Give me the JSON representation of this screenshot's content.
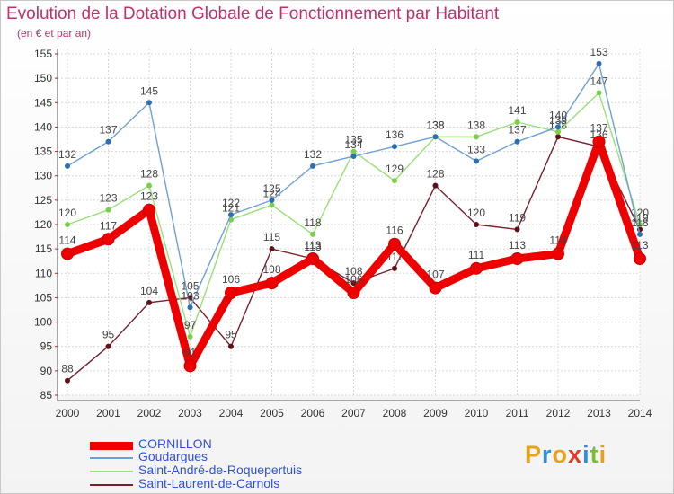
{
  "header": {
    "title": "Evolution de la Dotation Globale de Fonctionnement par Habitant",
    "subtitle": "(en € et par an)"
  },
  "brand": {
    "letters": [
      "P",
      "r",
      "o",
      "x",
      "i",
      "t",
      "i"
    ],
    "colors": [
      "#e6a21a",
      "#2f8fd8",
      "#e6a21a",
      "#e23b2b",
      "#2f8fd8",
      "#7bbf2a",
      "#e6a21a"
    ]
  },
  "chart_data": {
    "type": "line",
    "title": "Evolution de la Dotation Globale de Fonctionnement par Habitant",
    "ylabel": "(en € et par an)",
    "xlabel": "",
    "ylim": [
      85,
      155
    ],
    "yticks": [
      "85",
      "90",
      "95",
      "100",
      "105",
      "110",
      "115",
      "120",
      "125",
      "130",
      "135",
      "140",
      "145",
      "150",
      "155"
    ],
    "categories": [
      "2000",
      "2001",
      "2002",
      "2003",
      "2004",
      "2005",
      "2006",
      "2007",
      "2008",
      "2009",
      "2010",
      "2011",
      "2012",
      "2013",
      "2014"
    ],
    "grid": true,
    "series": [
      {
        "name": "Saint-Laurent-de-Carnols",
        "color": "#7a1f2a",
        "dot": "#5e1218",
        "values": [
          88,
          95,
          104,
          105,
          95,
          115,
          113,
          108,
          111,
          128,
          120,
          119,
          138,
          136,
          119
        ]
      },
      {
        "name": "Saint-André-de-Roquepertuis",
        "color": "#98df74",
        "dot": "#7ad04a",
        "values": [
          120,
          123,
          128,
          97,
          121,
          124,
          118,
          135,
          129,
          138,
          138,
          141,
          139,
          147,
          120
        ]
      },
      {
        "name": "Goudargues",
        "color": "#6ea0d3",
        "dot": "#2d6fb3",
        "values": [
          132,
          137,
          145,
          103,
          122,
          125,
          132,
          134,
          136,
          138,
          133,
          137,
          140,
          153,
          118
        ]
      },
      {
        "name": "CORNILLON",
        "color": "#ee0000",
        "dot": "#ee0000",
        "values": [
          114,
          117,
          123,
          91,
          106,
          108,
          113,
          106,
          116,
          107,
          111,
          113,
          114,
          137,
          113
        ]
      }
    ],
    "legend": [
      "CORNILLON",
      "Goudargues",
      "Saint-André-de-Roquepertuis",
      "Saint-Laurent-de-Carnols"
    ]
  }
}
